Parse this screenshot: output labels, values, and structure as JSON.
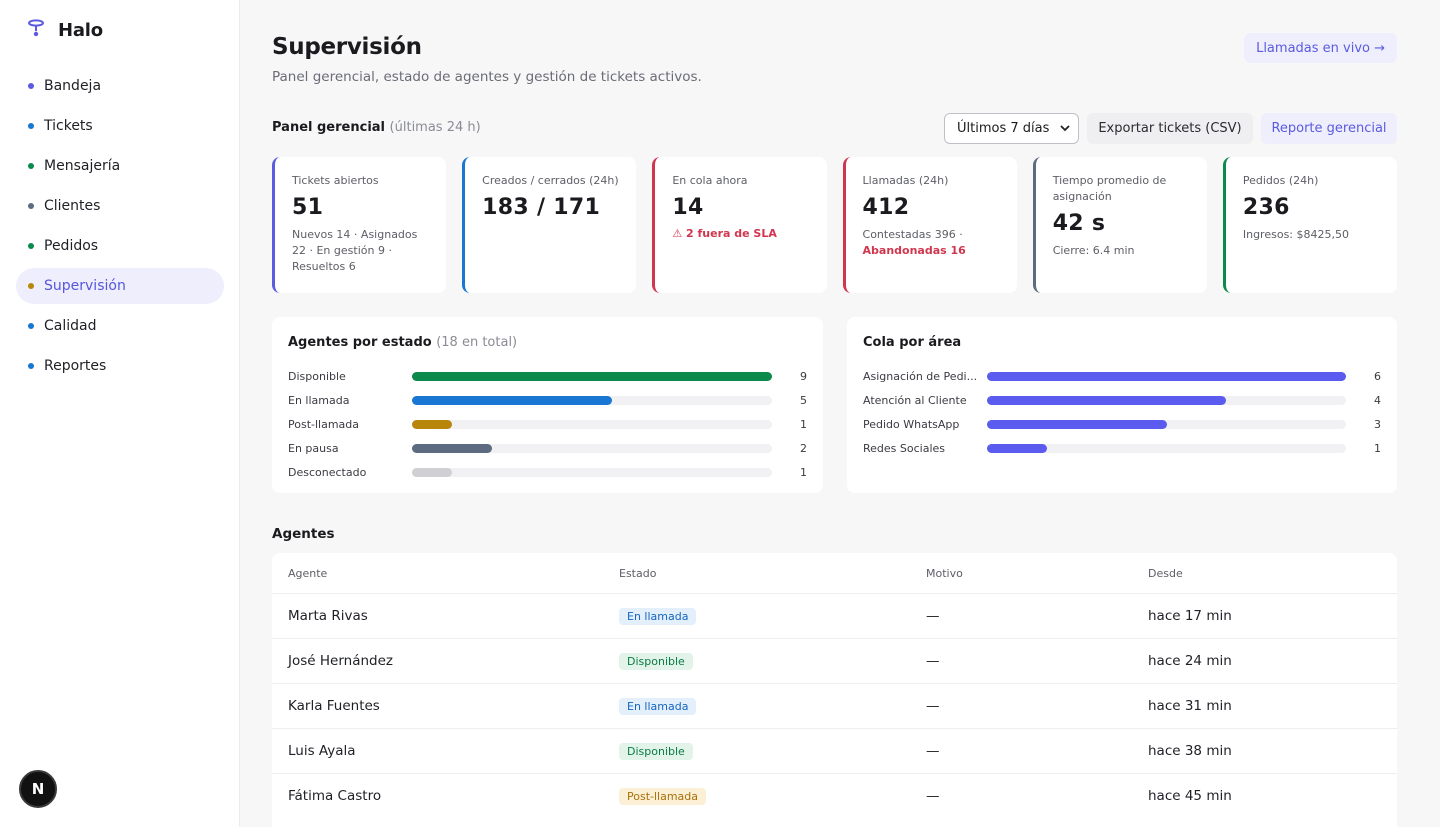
{
  "app": {
    "name": "Halo"
  },
  "sidebar": {
    "items": [
      {
        "label": "Bandeja",
        "dot": "#5b5be0"
      },
      {
        "label": "Tickets",
        "dot": "#1976d2"
      },
      {
        "label": "Mensajería",
        "dot": "#0b8a4b"
      },
      {
        "label": "Clientes",
        "dot": "#5c6b80"
      },
      {
        "label": "Pedidos",
        "dot": "#0b8a4b"
      },
      {
        "label": "Supervisión",
        "dot": "#b8860b"
      },
      {
        "label": "Calidad",
        "dot": "#1976d2"
      },
      {
        "label": "Reportes",
        "dot": "#1976d2"
      }
    ],
    "avatar_letter": "N"
  },
  "header": {
    "title": "Supervisión",
    "subtitle": "Panel gerencial, estado de agentes y gestión de tickets activos.",
    "live_button": "Llamadas en vivo →"
  },
  "panel": {
    "title": "Panel gerencial",
    "title_muted": "(últimas 24 h)",
    "period_selected": "Últimos 7 días",
    "export_button": "Exportar tickets (CSV)",
    "report_button": "Reporte gerencial"
  },
  "kpis": [
    {
      "label": "Tickets abiertos",
      "value": "51",
      "sub": "Nuevos 14 · Asignados 22 · En gestión 9 · Resueltos 6",
      "color": "#5c5ce0"
    },
    {
      "label": "Creados / cerrados (24h)",
      "value": "183 / 171",
      "color": "#1976d2"
    },
    {
      "label": "En cola ahora",
      "value": "14",
      "warn": "⚠ 2 fuera de SLA",
      "color": "#d1364f"
    },
    {
      "label": "Llamadas (24h)",
      "value": "412",
      "sub": "Contestadas 396 ·",
      "sub_red": "Abandonadas 16",
      "color": "#d1364f"
    },
    {
      "label": "Tiempo promedio de asignación",
      "value": "42 s",
      "sub": "Cierre: 6.4 min",
      "color": "#5c6b80"
    },
    {
      "label": "Pedidos (24h)",
      "value": "236",
      "sub": "Ingresos: $8425,50",
      "color": "#0b8a4b"
    }
  ],
  "agents_by_status": {
    "title": "Agentes por estado",
    "title_muted": "(18 en total)",
    "max": 9,
    "rows": [
      {
        "label": "Disponible",
        "value": 9,
        "color": "#0b8a4b"
      },
      {
        "label": "En llamada",
        "value": 5,
        "color": "#1976d2"
      },
      {
        "label": "Post-llamada",
        "value": 1,
        "color": "#b8860b"
      },
      {
        "label": "En pausa",
        "value": 2,
        "color": "#5c6b80"
      },
      {
        "label": "Desconectado",
        "value": 1,
        "color": "#cfcfd4"
      }
    ]
  },
  "queue_by_area": {
    "title": "Cola por área",
    "max": 6,
    "rows": [
      {
        "label": "Asignación de Pedi...",
        "value": 6,
        "color": "#5b5bf0"
      },
      {
        "label": "Atención al Cliente",
        "value": 4,
        "color": "#5b5bf0"
      },
      {
        "label": "Pedido WhatsApp",
        "value": 3,
        "color": "#5b5bf0"
      },
      {
        "label": "Redes Sociales",
        "value": 1,
        "color": "#5b5bf0"
      }
    ]
  },
  "agents": {
    "title": "Agentes",
    "columns": [
      "Agente",
      "Estado",
      "Motivo",
      "Desde"
    ],
    "rows": [
      {
        "name": "Marta Rivas",
        "status": "En llamada",
        "status_bg": "#e3f0fc",
        "status_fg": "#1565c0",
        "reason": "—",
        "since": "hace 17 min"
      },
      {
        "name": "José Hernández",
        "status": "Disponible",
        "status_bg": "#e2f4ea",
        "status_fg": "#0b7a43",
        "reason": "—",
        "since": "hace 24 min"
      },
      {
        "name": "Karla Fuentes",
        "status": "En llamada",
        "status_bg": "#e3f0fc",
        "status_fg": "#1565c0",
        "reason": "—",
        "since": "hace 31 min"
      },
      {
        "name": "Luis Ayala",
        "status": "Disponible",
        "status_bg": "#e2f4ea",
        "status_fg": "#0b7a43",
        "reason": "—",
        "since": "hace 38 min"
      },
      {
        "name": "Fátima Castro",
        "status": "Post-llamada",
        "status_bg": "#fbf0d6",
        "status_fg": "#a9700a",
        "reason": "—",
        "since": "hace 45 min"
      }
    ]
  }
}
